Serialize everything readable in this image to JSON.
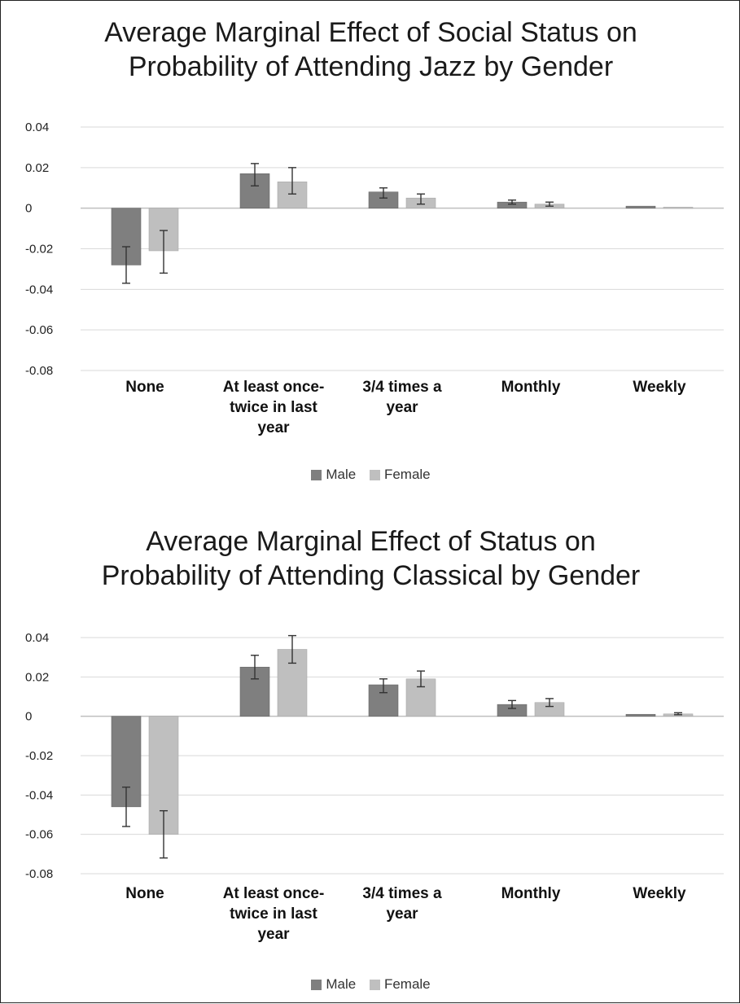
{
  "chart_data": [
    {
      "type": "bar",
      "title": "Average Marginal Effect of Social Status on Probability of Attending Jazz by Gender",
      "title_lines": [
        "Average Marginal Effect of Social Status on",
        "Probability of Attending Jazz by Gender"
      ],
      "categories": [
        "None",
        "At least once-twice in last year",
        "3/4 times a year",
        "Monthly",
        "Weekly"
      ],
      "category_lines": [
        [
          "None"
        ],
        [
          "At least once-",
          "twice in last",
          "year"
        ],
        [
          "3/4 times a",
          "year"
        ],
        [
          "Monthly"
        ],
        [
          "Weekly"
        ]
      ],
      "series": [
        {
          "name": "Male",
          "values": [
            -0.028,
            0.017,
            0.008,
            0.003,
            0.001
          ],
          "err_low": [
            -0.037,
            0.011,
            0.005,
            0.002,
            0.001
          ],
          "err_high": [
            -0.019,
            0.022,
            0.01,
            0.004,
            0.001
          ]
        },
        {
          "name": "Female",
          "values": [
            -0.021,
            0.013,
            0.005,
            0.002,
            0.0005
          ],
          "err_low": [
            -0.032,
            0.007,
            0.002,
            0.001,
            0.0005
          ],
          "err_high": [
            -0.011,
            0.02,
            0.007,
            0.003,
            0.0005
          ]
        }
      ],
      "ylim": [
        -0.08,
        0.04
      ],
      "yticks": [
        0.04,
        0.02,
        0,
        -0.02,
        -0.04,
        -0.06,
        -0.08
      ],
      "ytick_labels": [
        "0.04",
        "0.02",
        "0",
        "-0.02",
        "-0.04",
        "-0.06",
        "-0.08"
      ],
      "xlabel": "",
      "ylabel": "",
      "grid": true,
      "legend_position": "bottom"
    },
    {
      "type": "bar",
      "title": "Average Marginal Effect of Status on Probability of Attending Classical by Gender",
      "title_lines": [
        "Average Marginal Effect of Status on",
        "Probability of Attending Classical by Gender"
      ],
      "categories": [
        "None",
        "At least once-twice in last year",
        "3/4 times a year",
        "Monthly",
        "Weekly"
      ],
      "category_lines": [
        [
          "None"
        ],
        [
          "At least once-",
          "twice in last",
          "year"
        ],
        [
          "3/4 times a",
          "year"
        ],
        [
          "Monthly"
        ],
        [
          "Weekly"
        ]
      ],
      "series": [
        {
          "name": "Male",
          "values": [
            -0.046,
            0.025,
            0.016,
            0.006,
            0.001
          ],
          "err_low": [
            -0.056,
            0.019,
            0.012,
            0.004,
            0.0008
          ],
          "err_high": [
            -0.036,
            0.031,
            0.019,
            0.008,
            0.0012
          ]
        },
        {
          "name": "Female",
          "values": [
            -0.06,
            0.034,
            0.019,
            0.007,
            0.0012
          ],
          "err_low": [
            -0.072,
            0.027,
            0.015,
            0.005,
            0.0008
          ],
          "err_high": [
            -0.048,
            0.041,
            0.023,
            0.009,
            0.0018
          ]
        }
      ],
      "ylim": [
        -0.08,
        0.04
      ],
      "yticks": [
        0.04,
        0.02,
        0,
        -0.02,
        -0.04,
        -0.06,
        -0.08
      ],
      "ytick_labels": [
        "0.04",
        "0.02",
        "0",
        "-0.02",
        "-0.04",
        "-0.06",
        "-0.08"
      ],
      "xlabel": "",
      "ylabel": "",
      "grid": true,
      "legend_position": "bottom"
    }
  ],
  "colors": {
    "male": "#7f7f7f",
    "female": "#bfbfbf",
    "grid": "#d9d9d9",
    "axis": "#bfbfbf",
    "errorbar": "#333333"
  }
}
